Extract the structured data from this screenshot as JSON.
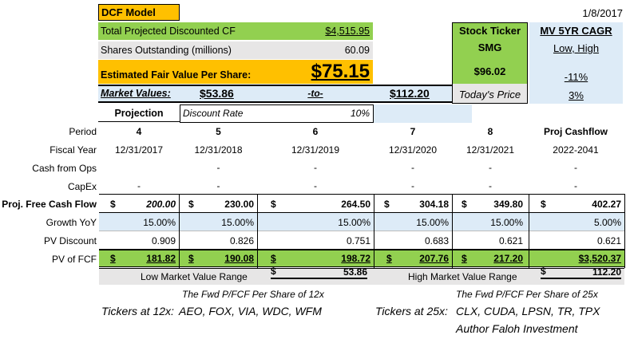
{
  "header": {
    "title": "DCF Model",
    "date": "1/8/2017"
  },
  "summary": {
    "total_cf_label": "Total Projected Discounted CF",
    "total_cf_value": "$4,515.95",
    "shares_label": "Shares Outstanding (millions)",
    "shares_value": "60.09",
    "fair_label": "Estimated Fair Value Per Share:",
    "fair_value": "$75.15",
    "market_label": "Market Values:",
    "market_low": "$53.86",
    "market_to": "-to-",
    "market_high": "$112.20",
    "projection_label": "Projection",
    "discount_label": "Discount Rate",
    "discount_value": "10%"
  },
  "stock": {
    "ticker_label": "Stock Ticker",
    "ticker": "SMG",
    "price": "$96.02",
    "price_label": "Today's Price"
  },
  "cagr": {
    "title": "MV 5YR CAGR",
    "sub": "Low, High",
    "low": "-11%",
    "high": "3%"
  },
  "table": {
    "row_labels": [
      "Period",
      "Fiscal Year",
      "Cash from Ops",
      "CapEx",
      "Proj. Free Cash Flow",
      "Growth YoY",
      "PV Discount",
      "PV of FCF"
    ],
    "periods": [
      "4",
      "5",
      "6",
      "7",
      "8",
      "Proj Cashflow"
    ],
    "fiscal_years": [
      "12/31/2017",
      "12/31/2018",
      "12/31/2019",
      "12/31/2020",
      "12/31/2021",
      "2022-2041"
    ],
    "cash_ops": [
      "-",
      "-",
      "-",
      "-",
      "-",
      "-"
    ],
    "capex": [
      "-",
      "-",
      "-",
      "-",
      "-",
      "-"
    ],
    "fcf": [
      "200.00",
      "230.00",
      "264.50",
      "304.18",
      "349.80",
      "402.27"
    ],
    "growth": [
      "15.00%",
      "15.00%",
      "15.00%",
      "15.00%",
      "15.00%",
      "5.00%"
    ],
    "pv_disc": [
      "0.909",
      "0.826",
      "0.751",
      "0.683",
      "0.621",
      "0.621"
    ],
    "pv_fcf": [
      "181.82",
      "190.08",
      "198.72",
      "207.76",
      "217.20",
      "$3,520.37"
    ],
    "dollar": "$"
  },
  "range": {
    "low_label": "Low Market Value Range",
    "low_value": "53.86",
    "high_label": "High Market Value Range",
    "high_value": "112.20"
  },
  "notes": {
    "fwd12": "The Fwd P/FCF Per Share of 12x",
    "fwd25": "The Fwd P/FCF Per Share of 25x",
    "tickers12_label": "Tickers at 12x:",
    "tickers12": "AEO, FOX, VIA, WDC, WFM",
    "tickers25_label": "Tickers at 25x:",
    "tickers25": "CLX, CUDA, LPSN, TR, TPX",
    "author": "Author Faloh Investment"
  }
}
